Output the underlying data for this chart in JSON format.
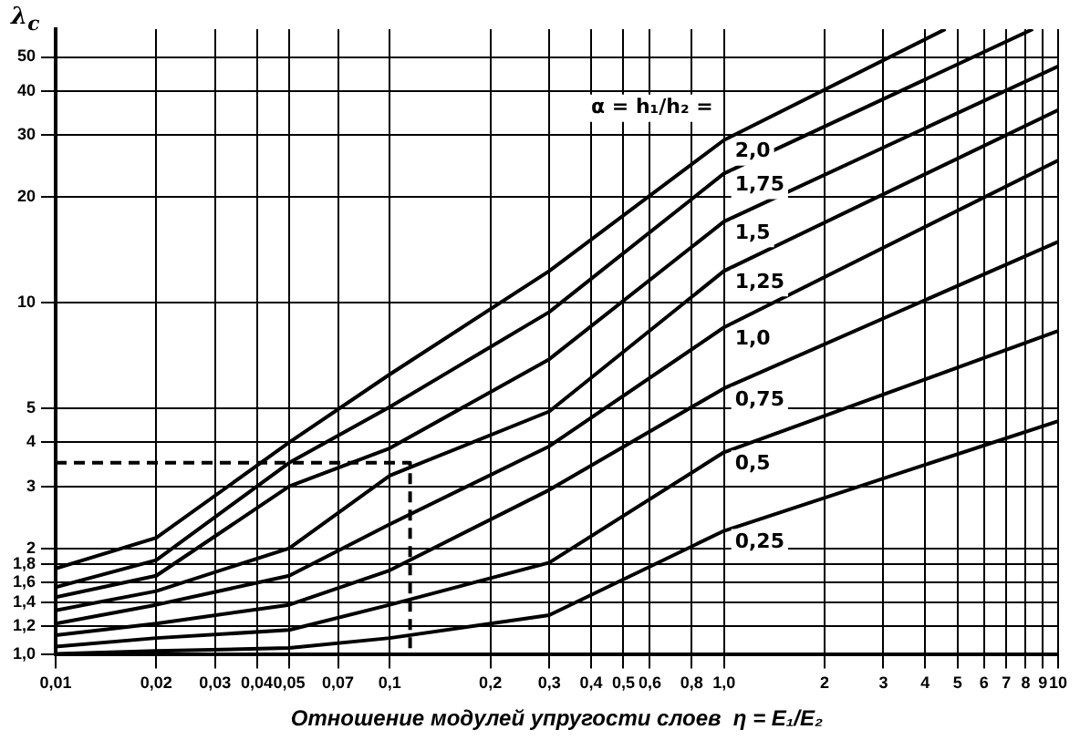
{
  "chart_data": {
    "type": "line",
    "xlabel": "Отношение модулей упругости слоев  η = E₁/E₂",
    "ylabel": "λ$_{c}$",
    "x": [
      0.01,
      0.02,
      0.05,
      0.1,
      0.3,
      1,
      10
    ],
    "xlim": [
      0.01,
      10
    ],
    "ylim": [
      1,
      60
    ],
    "log": "xy",
    "grid": true,
    "legend": false,
    "marker": "none",
    "line_style": "solid",
    "xticks": [
      {
        "value": 0.01,
        "label": "0,01"
      },
      {
        "value": 0.02,
        "label": "0,02"
      },
      {
        "value": 0.03,
        "label": "0,03"
      },
      {
        "value": 0.04,
        "label": "0,04"
      },
      {
        "value": 0.05,
        "label": "0,05"
      },
      {
        "value": 0.07,
        "label": "0,07"
      },
      {
        "value": 0.1,
        "label": "0,1"
      },
      {
        "value": 0.2,
        "label": "0,2"
      },
      {
        "value": 0.3,
        "label": "0,3"
      },
      {
        "value": 0.4,
        "label": "0,4"
      },
      {
        "value": 0.5,
        "label": "0,5"
      },
      {
        "value": 0.6,
        "label": "0,6"
      },
      {
        "value": 0.8,
        "label": "0,8"
      },
      {
        "value": 1,
        "label": "1,0"
      },
      2,
      3,
      4,
      5,
      6,
      7,
      8,
      9,
      10
    ],
    "yticks": [
      {
        "value": 1,
        "label": "1,0"
      },
      {
        "value": 1.2,
        "label": "1,2"
      },
      {
        "value": 1.4,
        "label": "1,4"
      },
      {
        "value": 1.6,
        "label": "1,6"
      },
      {
        "value": 1.8,
        "label": "1,8"
      },
      2,
      3,
      4,
      5,
      10,
      20,
      30,
      40,
      50
    ],
    "annotations": [
      "α = h₁/h₂ ="
    ],
    "series": [
      {
        "name": "2,0",
        "color": "#000000",
        "x": [
          0.01,
          0.02,
          0.05,
          0.1,
          0.3,
          1,
          4.6
        ],
        "values": [
          1.75,
          2.14,
          4.0,
          6.25,
          12.3,
          29,
          60
        ]
      },
      {
        "name": "1,75",
        "color": "#000000",
        "x": [
          0.01,
          0.02,
          0.05,
          0.1,
          0.3,
          1,
          8.4
        ],
        "values": [
          1.55,
          1.85,
          3.5,
          5.05,
          9.4,
          23.3,
          60
        ]
      },
      {
        "name": "1,5",
        "color": "#000000",
        "values": [
          1.45,
          1.67,
          3.0,
          3.85,
          6.9,
          17,
          47
        ]
      },
      {
        "name": "1,25",
        "color": "#000000",
        "values": [
          1.33,
          1.51,
          2.0,
          3.22,
          4.9,
          12.3,
          35.3
        ]
      },
      {
        "name": "1,0",
        "color": "#000000",
        "values": [
          1.22,
          1.38,
          1.67,
          2.34,
          3.9,
          8.5,
          25.4
        ]
      },
      {
        "name": "0,75",
        "color": "#000000",
        "values": [
          1.13,
          1.22,
          1.38,
          1.73,
          2.93,
          5.7,
          14.9
        ]
      },
      {
        "name": "0,5",
        "color": "#000000",
        "values": [
          1.05,
          1.11,
          1.17,
          1.38,
          1.82,
          3.75,
          8.3
        ]
      },
      {
        "name": "0,25",
        "color": "#000000",
        "values": [
          1.0,
          1.02,
          1.04,
          1.11,
          1.29,
          2.24,
          4.6
        ]
      },
      {
        "line_style": "dashed",
        "color": "#000000",
        "x": [
          0.01,
          0.115,
          0.115
        ],
        "values": [
          3.5,
          3.5,
          1.0
        ]
      }
    ]
  }
}
